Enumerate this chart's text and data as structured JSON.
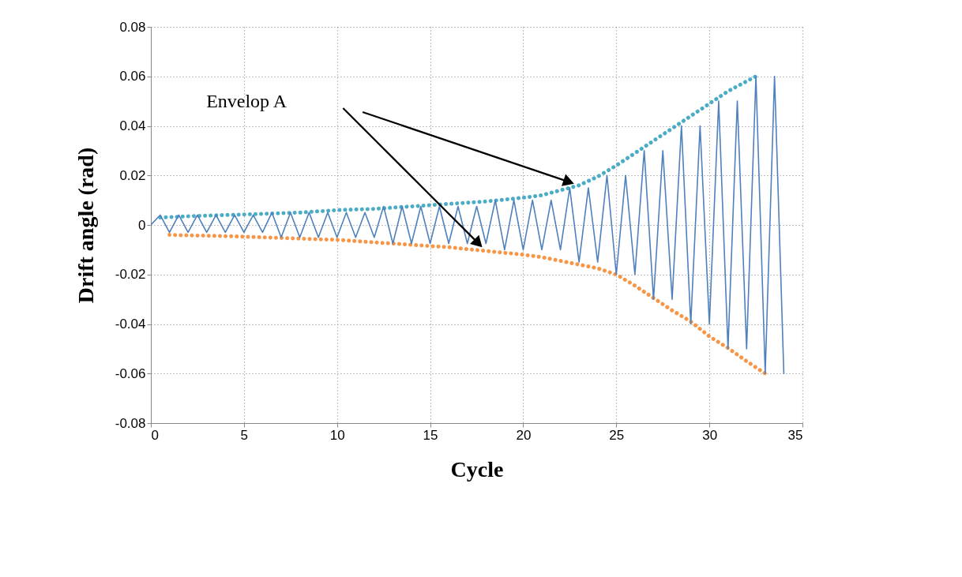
{
  "chart_data": {
    "type": "line",
    "xlabel": "Cycle",
    "ylabel": "Drift angle (rad)",
    "xlim": [
      0,
      35
    ],
    "xticks": [
      0,
      5,
      10,
      15,
      20,
      25,
      30,
      35
    ],
    "ylim": [
      -0.08,
      0.08
    ],
    "yticks": [
      -0.08,
      -0.06,
      -0.04,
      -0.02,
      0,
      0.02,
      0.04,
      0.06,
      0.08
    ],
    "grid": true,
    "marker": "none",
    "annotations": [
      "Envelop A"
    ],
    "series": [
      {
        "color": "#4f81bd",
        "line_style": "solid",
        "x": [
          0,
          0.5,
          1,
          1.5,
          2,
          2.5,
          3,
          3.5,
          4,
          4.5,
          5,
          5.5,
          6,
          6.5,
          7,
          7.5,
          8,
          8.5,
          9,
          9.5,
          10,
          10.5,
          11,
          11.5,
          12,
          12.5,
          13,
          13.5,
          14,
          14.5,
          15,
          15.5,
          16,
          16.5,
          17,
          17.5,
          18,
          18.5,
          19,
          19.5,
          20,
          20.5,
          21,
          21.5,
          22,
          22.5,
          23,
          23.5,
          24,
          24.5,
          25,
          25.5,
          26,
          26.5,
          27,
          27.5,
          28,
          28.5,
          29,
          29.5,
          30,
          30.5,
          31,
          31.5,
          32,
          32.5,
          33,
          33.5,
          34
        ],
        "values": [
          0,
          0.004,
          -0.003,
          0.004,
          -0.003,
          0.004,
          -0.003,
          0.004,
          -0.003,
          0.004,
          -0.003,
          0.004,
          -0.003,
          0.005,
          -0.005,
          0.005,
          -0.005,
          0.005,
          -0.005,
          0.005,
          -0.005,
          0.005,
          -0.005,
          0.005,
          -0.005,
          0.0075,
          -0.0075,
          0.0075,
          -0.0075,
          0.0075,
          -0.0075,
          0.0075,
          -0.0075,
          0.0075,
          -0.0075,
          0.0075,
          -0.0075,
          0.01,
          -0.01,
          0.01,
          -0.01,
          0.01,
          -0.01,
          0.01,
          -0.01,
          0.015,
          -0.015,
          0.015,
          -0.015,
          0.02,
          -0.02,
          0.02,
          -0.02,
          0.03,
          -0.03,
          0.03,
          -0.03,
          0.04,
          -0.04,
          0.04,
          -0.04,
          0.05,
          -0.05,
          0.05,
          -0.05,
          0.06,
          -0.06,
          0.06,
          -0.06
        ]
      },
      {
        "color": "#4bacc6",
        "line_style": "dotted",
        "x": [
          0.5,
          2,
          4,
          6,
          8,
          10,
          12,
          14,
          16,
          18,
          20,
          21,
          22,
          23,
          24,
          25,
          26,
          27,
          28,
          29,
          30,
          31,
          32,
          32.5
        ],
        "values": [
          0.003,
          0.0035,
          0.004,
          0.0045,
          0.005,
          0.006,
          0.0065,
          0.0075,
          0.0085,
          0.0095,
          0.011,
          0.012,
          0.014,
          0.016,
          0.0195,
          0.024,
          0.029,
          0.034,
          0.039,
          0.044,
          0.049,
          0.054,
          0.058,
          0.06
        ]
      },
      {
        "color": "#f79646",
        "line_style": "dotted",
        "x": [
          1,
          2,
          4,
          6,
          8,
          10,
          12,
          14,
          16,
          18,
          20,
          21,
          22,
          23,
          24,
          25,
          26,
          27,
          28,
          29,
          30,
          31,
          32,
          33
        ],
        "values": [
          -0.004,
          -0.0042,
          -0.0045,
          -0.005,
          -0.0055,
          -0.006,
          -0.007,
          -0.008,
          -0.009,
          -0.0105,
          -0.012,
          -0.013,
          -0.0145,
          -0.016,
          -0.0175,
          -0.02,
          -0.0245,
          -0.0295,
          -0.0345,
          -0.039,
          -0.045,
          -0.0497,
          -0.055,
          -0.06
        ]
      }
    ]
  }
}
